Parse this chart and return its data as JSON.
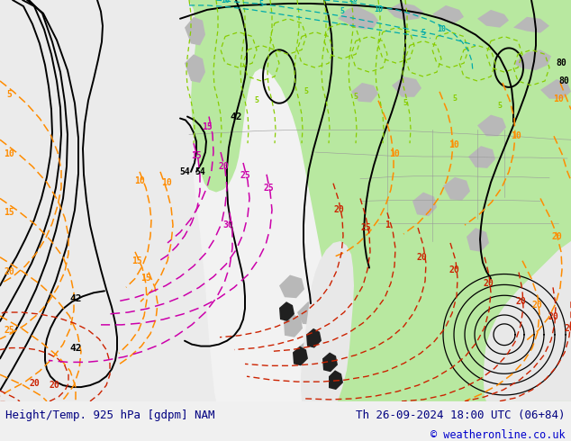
{
  "title_left": "Height/Temp. 925 hPa [gdpm] NAM",
  "title_right": "Th 26-09-2024 18:00 UTC (06+84)",
  "copyright": "© weatheronline.co.uk",
  "bg_color": "#f0f0f0",
  "land_green": "#b8e8a0",
  "land_gray": "#b0b0b0",
  "ocean_light": "#f2f2f2",
  "black": "#000000",
  "orange": "#ff8c00",
  "red": "#cc2200",
  "magenta": "#cc00aa",
  "lime": "#88cc00",
  "cyan": "#00aaaa",
  "boundary_gray": "#999999",
  "footer_color": "#000080",
  "copyright_color": "#0000cc",
  "figsize": [
    6.34,
    4.9
  ],
  "dpi": 100
}
